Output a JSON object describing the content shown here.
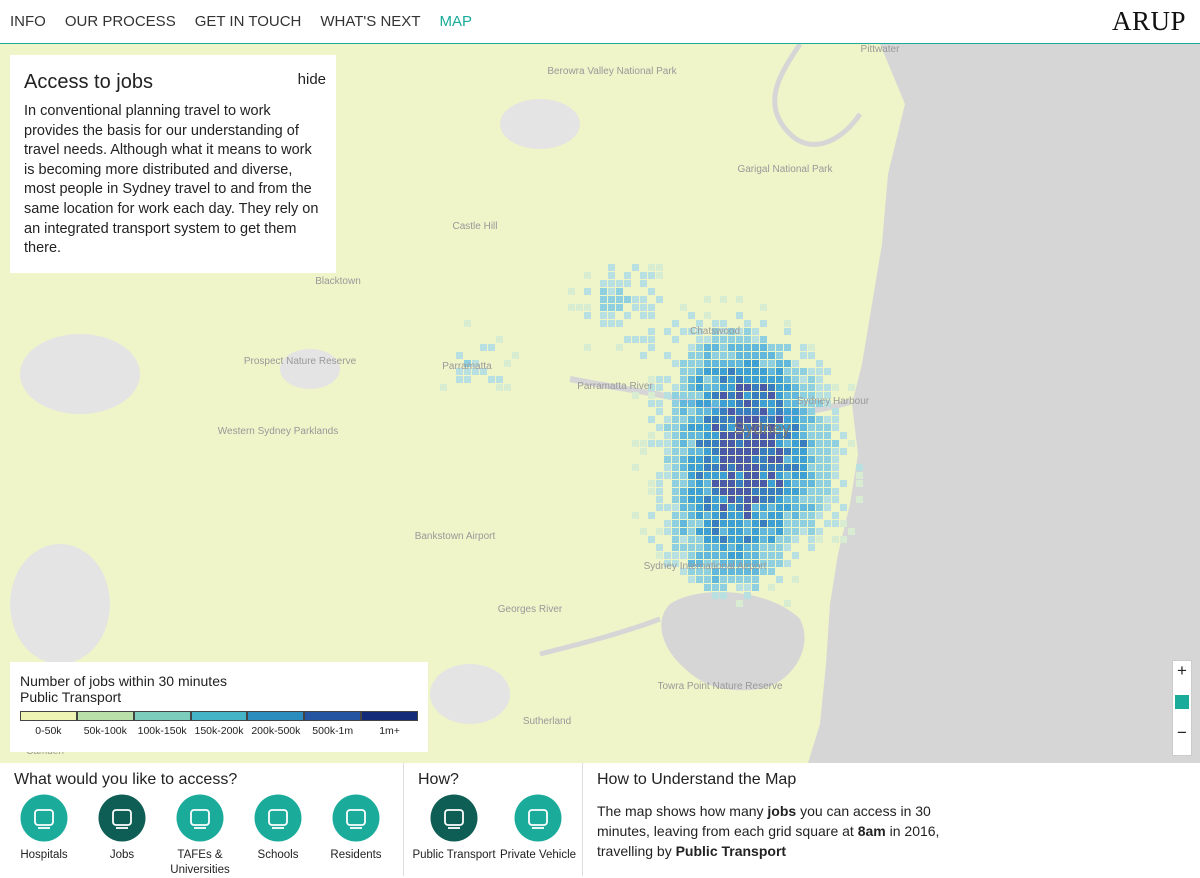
{
  "nav": {
    "items": [
      "INFO",
      "OUR PROCESS",
      "GET IN TOUCH",
      "WHAT'S NEXT",
      "MAP"
    ],
    "active": 4,
    "logo": "ARUP"
  },
  "info_panel": {
    "title": "Access to jobs",
    "hide": "hide",
    "text": "In conventional planning travel to work provides the basis for our understanding of travel needs. Although what it means to work is becoming more distributed and diverse, most people in Sydney travel to and from the same location for work each day. They rely on an integrated transport system to get them there."
  },
  "map_labels": [
    "Pittwater",
    "Berowra Valley National Park",
    "Garigal National Park",
    "Castle Hill",
    "Blacktown",
    "Chatswood",
    "Parramatta",
    "Prospect Nature Reserve",
    "Parramatta River",
    "Sydney Harbour",
    "Sydney",
    "Western Sydney Parklands",
    "Bankstown Airport",
    "Sydney International Airport",
    "Georges River",
    "Towra Point Nature Reserve",
    "Sutherland",
    "Camden"
  ],
  "legend": {
    "title": "Number of jobs within 30 minutes",
    "subtitle": "Public Transport",
    "bins": [
      {
        "label": "0-50k",
        "color": "#eef5b4"
      },
      {
        "label": "50k-100k",
        "color": "#b9e0a8"
      },
      {
        "label": "100k-150k",
        "color": "#7ccdbb"
      },
      {
        "label": "150k-200k",
        "color": "#45b4c6"
      },
      {
        "label": "200k-500k",
        "color": "#2b8cbe"
      },
      {
        "label": "500k-1m",
        "color": "#2554a0"
      },
      {
        "label": "1m+",
        "color": "#142b7a"
      }
    ]
  },
  "zoom": {
    "in": "+",
    "out": "−"
  },
  "access": {
    "heading": "What would you like to access?",
    "items": [
      "Hospitals",
      "Jobs",
      "TAFEs & Universities",
      "Schools",
      "Residents"
    ],
    "selected": 1
  },
  "how": {
    "heading": "How?",
    "items": [
      "Public Transport",
      "Private Vehicle"
    ],
    "selected": 0
  },
  "understand": {
    "heading": "How to Understand the Map",
    "segments": [
      {
        "text": "The map shows how many ",
        "bold": false
      },
      {
        "text": "jobs",
        "bold": true
      },
      {
        "text": " you can access in 30 minutes, leaving from each grid square at ",
        "bold": false
      },
      {
        "text": "8am",
        "bold": true
      },
      {
        "text": " in 2016, travelling by ",
        "bold": false
      },
      {
        "text": "Public Transport",
        "bold": true
      }
    ]
  }
}
